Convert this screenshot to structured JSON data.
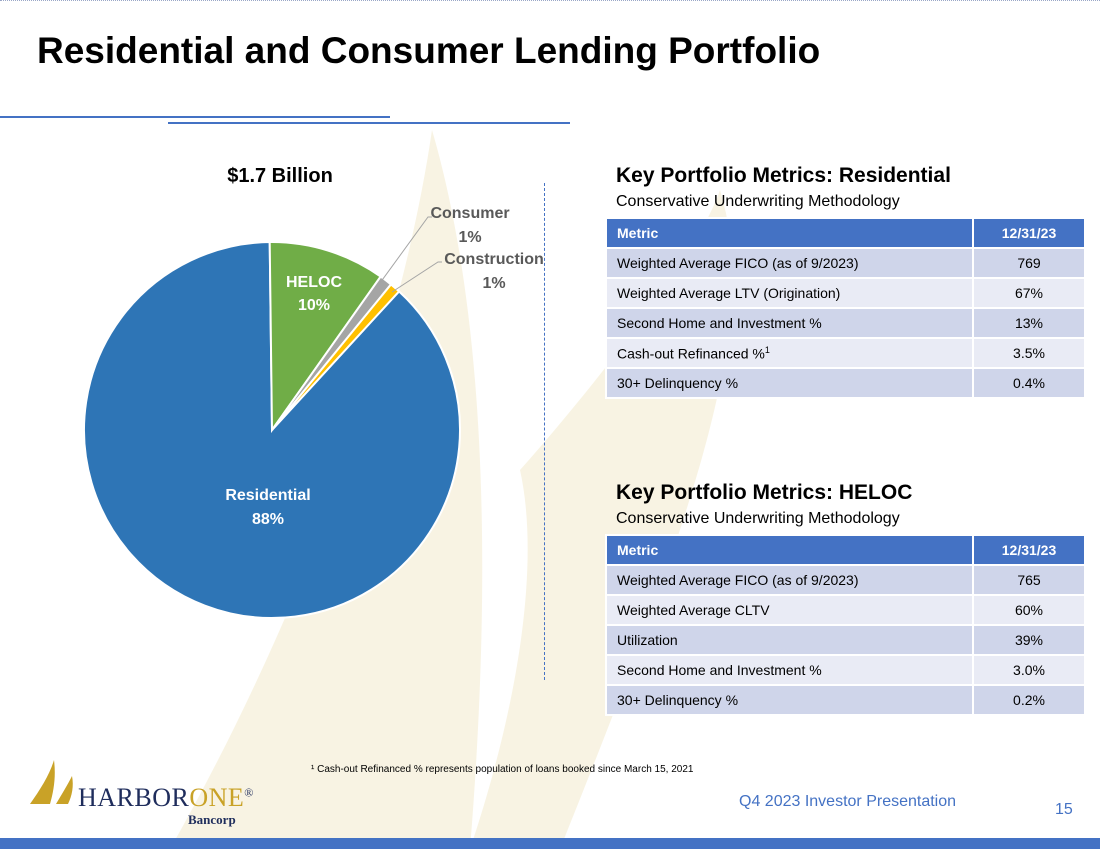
{
  "page": {
    "title": "Residential and Consumer Lending Portfolio",
    "footnote": "¹ Cash-out Refinanced % represents population of loans booked since March 15, 2021",
    "footer": "Q4 2023 Investor Presentation",
    "page_number": "15"
  },
  "logo": {
    "name_part1": "HARBOR",
    "name_part2": "ONE",
    "registered": "®",
    "sub": "Bancorp"
  },
  "colors": {
    "residential": "#2e75b6",
    "heloc": "#70ad47",
    "consumer": "#a5a5a5",
    "construction": "#ffc000",
    "accent": "#4472c4",
    "gold": "#c9a227"
  },
  "chart_data": {
    "type": "pie",
    "title": "$1.7 Billion",
    "slices": [
      {
        "label": "Residential",
        "pct_text": "88%",
        "value": 88.0,
        "color": "#2e75b6",
        "label_color": "#ffffff"
      },
      {
        "label": "HELOC",
        "pct_text": "10%",
        "value": 10.0,
        "color": "#70ad47",
        "label_color": "#ffffff"
      },
      {
        "label": "Consumer",
        "pct_text": "1%",
        "value": 1.1,
        "color": "#a5a5a5",
        "label_color": "#595959"
      },
      {
        "label": "Construction",
        "pct_text": "1%",
        "value": 0.9,
        "color": "#ffc000",
        "label_color": "#595959"
      }
    ]
  },
  "residential": {
    "title": "Key Portfolio Metrics:  Residential",
    "subtitle": "Conservative Underwriting Methodology",
    "header": [
      "Metric",
      "12/31/23"
    ],
    "rows": [
      {
        "metric": "Weighted Average FICO (as of 9/2023)",
        "sup": "",
        "value": "769"
      },
      {
        "metric": "Weighted Average LTV (Origination)",
        "sup": "",
        "value": "67%"
      },
      {
        "metric": "Second Home and Investment %",
        "sup": "",
        "value": "13%"
      },
      {
        "metric": "Cash-out Refinanced %",
        "sup": "1",
        "value": "3.5%"
      },
      {
        "metric": "30+ Delinquency %",
        "sup": "",
        "value": "0.4%"
      }
    ]
  },
  "heloc": {
    "title": "Key Portfolio Metrics:  HELOC",
    "subtitle": "Conservative Underwriting Methodology",
    "header": [
      "Metric",
      "12/31/23"
    ],
    "rows": [
      {
        "metric": "Weighted Average FICO (as of 9/2023)",
        "value": "765"
      },
      {
        "metric": "Weighted Average CLTV",
        "value": "60%"
      },
      {
        "metric": "Utilization",
        "value": "39%"
      },
      {
        "metric": "Second Home and Investment %",
        "value": "3.0%"
      },
      {
        "metric": "30+ Delinquency %",
        "value": "0.2%"
      }
    ]
  }
}
